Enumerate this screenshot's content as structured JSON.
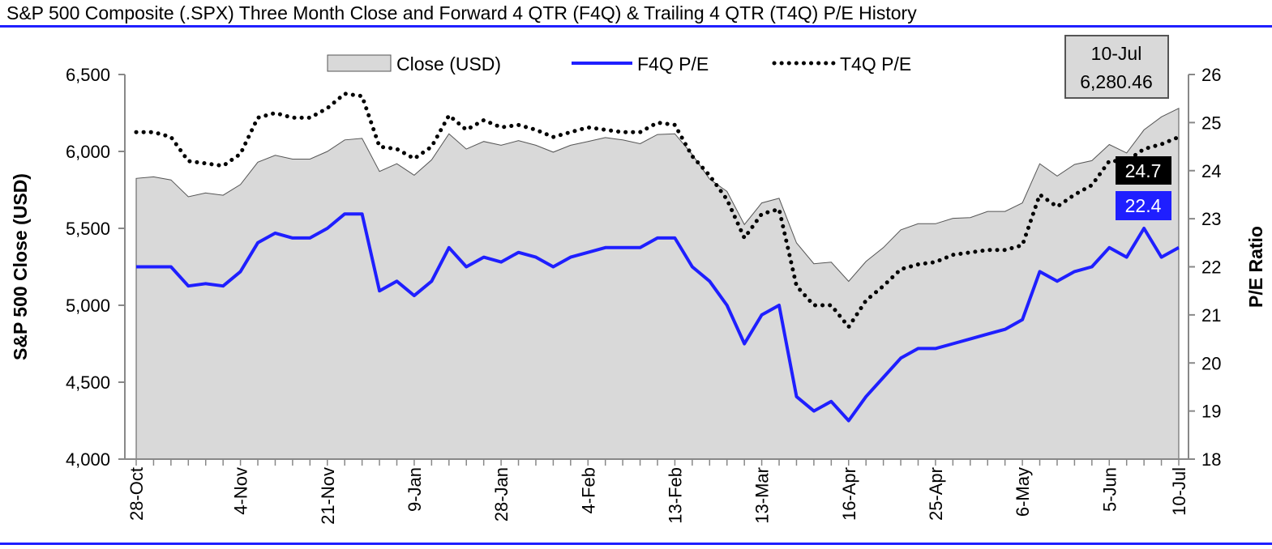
{
  "title": "S&P 500 Composite (.SPX) Three Month Close and Forward 4 QTR (F4Q) & Trailing 4 QTR (T4Q) P/E History",
  "chart_data": {
    "type": "line",
    "title": "S&P 500 Composite (.SPX) Three Month Close and Forward 4 QTR (F4Q) & Trailing 4 QTR (T4Q) P/E History",
    "xlabel": "",
    "ylabel": "S&P 500 Close (USD)",
    "y2label": "P/E Ratio",
    "ylim": [
      4000,
      6500
    ],
    "yticks": [
      "4,000",
      "4,500",
      "5,000",
      "5,500",
      "6,000",
      "6,500"
    ],
    "y2lim": [
      18,
      26
    ],
    "y2ticks": [
      "18",
      "19",
      "20",
      "21",
      "22",
      "23",
      "24",
      "25",
      "26"
    ],
    "grid": false,
    "legend_position": "top",
    "x_tick_labels": [
      {
        "index": 0,
        "label": "28-Oct"
      },
      {
        "index": 6,
        "label": "4-Nov"
      },
      {
        "index": 11,
        "label": "21-Nov"
      },
      {
        "index": 16,
        "label": "9-Jan"
      },
      {
        "index": 21,
        "label": "28-Jan"
      },
      {
        "index": 26,
        "label": "4-Feb"
      },
      {
        "index": 31,
        "label": "13-Feb"
      },
      {
        "index": 36,
        "label": "13-Mar"
      },
      {
        "index": 41,
        "label": "16-Apr"
      },
      {
        "index": 46,
        "label": "25-Apr"
      },
      {
        "index": 51,
        "label": "6-May"
      },
      {
        "index": 56,
        "label": "5-Jun"
      },
      {
        "index": 60,
        "label": "10-Jul"
      }
    ],
    "series": [
      {
        "name": "Close (USD)",
        "kind": "area",
        "axis": "left",
        "color": "#d9d9d9",
        "values": [
          5825,
          5835,
          5815,
          5705,
          5730,
          5715,
          5785,
          5930,
          5975,
          5950,
          5950,
          6000,
          6075,
          6085,
          5870,
          5920,
          5845,
          5945,
          6115,
          6015,
          6065,
          6040,
          6070,
          6040,
          5995,
          6040,
          6065,
          6090,
          6075,
          6050,
          6110,
          6115,
          5980,
          5820,
          5740,
          5525,
          5665,
          5695,
          5405,
          5270,
          5280,
          5155,
          5285,
          5375,
          5490,
          5530,
          5530,
          5565,
          5570,
          5610,
          5610,
          5665,
          5920,
          5840,
          5915,
          5940,
          6045,
          5990,
          6140,
          6225,
          6280
        ]
      },
      {
        "name": "F4Q P/E",
        "kind": "line",
        "axis": "right",
        "color": "#1f1fff",
        "values": [
          22.0,
          22.0,
          22.0,
          21.6,
          21.65,
          21.6,
          21.9,
          22.5,
          22.7,
          22.6,
          22.6,
          22.8,
          23.1,
          23.1,
          21.5,
          21.7,
          21.4,
          21.7,
          22.4,
          22.0,
          22.2,
          22.1,
          22.3,
          22.2,
          22.0,
          22.2,
          22.3,
          22.4,
          22.4,
          22.4,
          22.6,
          22.6,
          22.0,
          21.7,
          21.2,
          20.4,
          21.0,
          21.2,
          19.3,
          19.0,
          19.2,
          18.8,
          19.3,
          19.7,
          20.1,
          20.3,
          20.3,
          20.4,
          20.5,
          20.6,
          20.7,
          20.9,
          21.9,
          21.7,
          21.9,
          22.0,
          22.4,
          22.2,
          22.8,
          22.2,
          22.4
        ]
      },
      {
        "name": "T4Q P/E",
        "kind": "dotted-line",
        "axis": "right",
        "color": "#000000",
        "values": [
          24.8,
          24.8,
          24.7,
          24.2,
          24.15,
          24.1,
          24.35,
          25.1,
          25.2,
          25.1,
          25.1,
          25.3,
          25.6,
          25.55,
          24.5,
          24.45,
          24.25,
          24.5,
          25.15,
          24.85,
          25.05,
          24.9,
          24.95,
          24.85,
          24.7,
          24.8,
          24.9,
          24.85,
          24.8,
          24.8,
          25.0,
          24.95,
          24.3,
          23.9,
          23.4,
          22.6,
          23.1,
          23.2,
          21.6,
          21.2,
          21.2,
          20.75,
          21.3,
          21.6,
          21.95,
          22.05,
          22.1,
          22.25,
          22.3,
          22.35,
          22.35,
          22.45,
          23.5,
          23.25,
          23.5,
          23.7,
          24.2,
          24.2,
          24.45,
          24.55,
          24.7
        ]
      }
    ],
    "callouts": [
      {
        "date": "10-Jul",
        "value": "6,280.46"
      },
      {
        "value": "24.7",
        "series": "T4Q P/E"
      },
      {
        "value": "22.4",
        "series": "F4Q P/E"
      }
    ]
  }
}
